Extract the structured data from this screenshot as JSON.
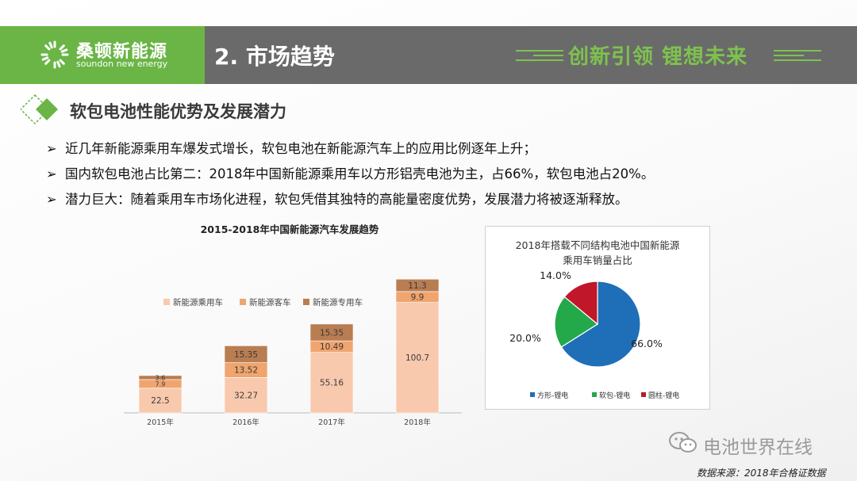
{
  "header": {
    "brand_cn": "桑顿新能源",
    "brand_en": "soundon new energy",
    "section_title": "2. 市场趋势",
    "slogan": "创新引领  锂想未来",
    "logo_icon": "sun-ring-icon",
    "colors": {
      "green": "#6ab545",
      "gray": "#6a6a6a",
      "slogan_green": "#7ec24e"
    }
  },
  "subtitle": "软包电池性能优势及发展潜力",
  "bullets": [
    "近几年新能源乘用车爆发式增长，软包电池在新能源汽车上的应用比例逐年上升；",
    "国内软包电池占比第二：2018年中国新能源乘用车以方形铝壳电池为主，占66%，软包电池占20%。",
    "潜力巨大：随着乘用车市场化进程，软包凭借其独特的高能量密度优势，发展潜力将被逐渐释放。"
  ],
  "bullet_marker": "➢",
  "watermark": "电池世界在线",
  "source": "数据来源：2018年合格证数据",
  "chart_data": [
    {
      "type": "bar",
      "stacked": true,
      "title": "2015-2018年中国新能源汽车发展趋势",
      "categories": [
        "2015年",
        "2016年",
        "2017年",
        "2018年"
      ],
      "legend_position": "top-left",
      "series": [
        {
          "name": "新能源乘用车",
          "values": [
            22.5,
            32.27,
            55.16,
            100.7
          ],
          "labels": [
            "22.5",
            "32.27",
            "55.16",
            "100.7"
          ],
          "color": "#f9c9ad"
        },
        {
          "name": "新能源客车",
          "values": [
            7.9,
            13.52,
            10.49,
            9.9
          ],
          "labels": [
            "7.9",
            "13.52",
            "10.49",
            "9.9"
          ],
          "color": "#f0a46e"
        },
        {
          "name": "新能源专用车",
          "values": [
            3.6,
            15.35,
            15.35,
            11.3
          ],
          "labels": [
            "3.6",
            "15.35",
            "15.35",
            "11.3"
          ],
          "color": "#b97d52"
        }
      ],
      "ylim": [
        0,
        125
      ],
      "grid": false
    },
    {
      "type": "pie",
      "title_lines": [
        "2018年搭载不同结构电池中国新能源",
        "乘用车销量占比"
      ],
      "legend_position": "bottom",
      "slices": [
        {
          "name": "方形-锂电",
          "value": 66.0,
          "label": "66.0%",
          "color": "#1f6fb8"
        },
        {
          "name": "软包-锂电",
          "value": 20.0,
          "label": "20.0%",
          "color": "#23a84a"
        },
        {
          "name": "圆柱-锂电",
          "value": 14.0,
          "label": "14.0%",
          "color": "#c0172b"
        }
      ]
    }
  ]
}
